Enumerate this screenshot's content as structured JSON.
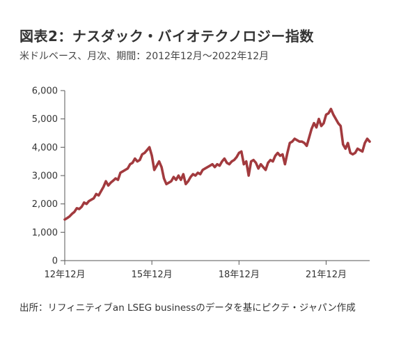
{
  "title": "図表2：ナスダック・バイオテクノロジー指数",
  "subtitle": "米ドルベース、月次、期間：2012年12月～2022年12月",
  "source": "出所：リフィニティブan LSEG businessのデータを基にピクテ・ジャパン作成",
  "colors": {
    "line": "#a23a3e",
    "axis": "#555555",
    "grid": "#d0d0d0",
    "text": "#333333"
  },
  "chart_data": {
    "type": "line",
    "title": "図表2：ナスダック・バイオテクノロジー指数",
    "xlabel": "",
    "ylabel": "",
    "ylim": [
      0,
      6000
    ],
    "yticks": [
      0,
      1000,
      2000,
      3000,
      4000,
      5000,
      6000
    ],
    "ytick_labels": [
      "0",
      "1,000",
      "2,000",
      "3,000",
      "4,000",
      "5,000",
      "6,000"
    ],
    "xticks": [
      "12年12月",
      "15年12月",
      "18年12月",
      "21年12月"
    ],
    "x_start": "2012-12",
    "x_end": "2022-12",
    "grid": false,
    "series": [
      {
        "values": [
          1450,
          1500,
          1560,
          1650,
          1720,
          1850,
          1820,
          1900,
          2050,
          2000,
          2100,
          2150,
          2200,
          2350,
          2300,
          2450,
          2600,
          2800,
          2650,
          2750,
          2820,
          2900,
          2850,
          3100,
          3150,
          3200,
          3250,
          3400,
          3450,
          3600,
          3500,
          3550,
          3750,
          3800,
          3900,
          4000,
          3700,
          3200,
          3350,
          3500,
          3300,
          2900,
          2700,
          2750,
          2800,
          2950,
          2850,
          3000,
          2850,
          3050,
          2700,
          2800,
          2950,
          3050,
          3000,
          3100,
          3050,
          3200,
          3250,
          3300,
          3350,
          3400,
          3300,
          3400,
          3350,
          3500,
          3600,
          3450,
          3400,
          3500,
          3550,
          3650,
          3800,
          3850,
          3400,
          3500,
          3000,
          3500,
          3550,
          3450,
          3250,
          3400,
          3300,
          3200,
          3450,
          3550,
          3500,
          3700,
          3800,
          3700,
          3750,
          3400,
          3800,
          4150,
          4200,
          4300,
          4250,
          4200,
          4200,
          4150,
          4050,
          4350,
          4650,
          4850,
          4700,
          5000,
          4750,
          4850,
          5150,
          5200,
          5350,
          5150,
          5000,
          4850,
          4750,
          4100,
          3950,
          4150,
          3800,
          3750,
          3800,
          3950,
          3900,
          3850,
          4150,
          4300,
          4200
        ]
      }
    ]
  }
}
